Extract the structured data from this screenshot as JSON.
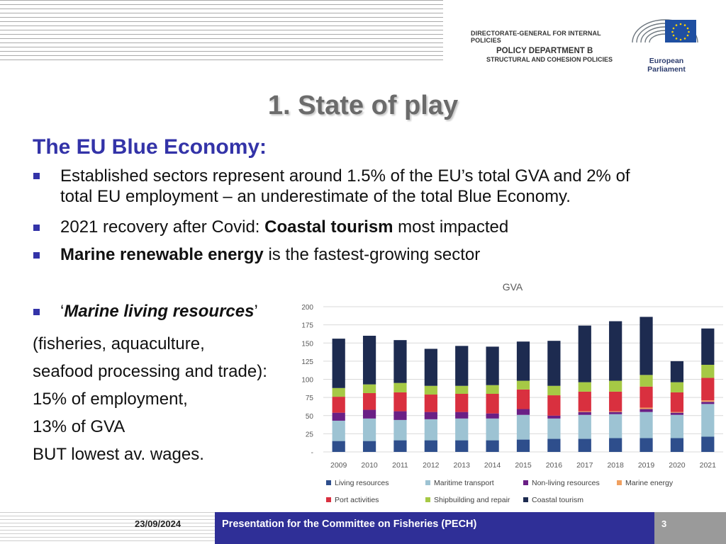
{
  "header": {
    "dg_line1": "DIRECTORATE-GENERAL FOR INTERNAL POLICIES",
    "dg_line2": "POLICY DEPARTMENT B",
    "dg_line3": "STRUCTURAL AND COHESION POLICIES",
    "org_name": "European Parliament"
  },
  "slide": {
    "title": "1. State of play",
    "subtitle": "The EU Blue Economy:",
    "bullet1_line1": "Established sectors represent around 1.5% of the EU’s total GVA and 2% of",
    "bullet1_line2": "total EU employment – an underestimate of the total Blue Economy.",
    "bullet2_pre": "2021 recovery after Covid: ",
    "bullet2_bold": "Coastal tourism",
    "bullet2_post": " most impacted",
    "bullet3_bold": "Marine renewable energy",
    "bullet3_post": " is the fastest-growing sector",
    "bullet4_open": "‘",
    "bullet4_bold": "Marine living resources",
    "bullet4_close": "’",
    "line_a": "(fisheries, aquaculture,",
    "line_b": "seafood processing and trade):",
    "line_c": "15% of employment,",
    "line_d": "13% of GVA",
    "line_e": "BUT lowest av. wages."
  },
  "footer": {
    "date": "23/09/2024",
    "presentation": "Presentation for the Committee on Fisheries (PECH)",
    "page_number": "3"
  },
  "colors": {
    "accent": "#3333a8",
    "footer_bar": "#2f2f97"
  },
  "chart_data": {
    "type": "bar",
    "stacked": true,
    "title": "GVA",
    "ylim": [
      0,
      200
    ],
    "yticks": [
      0,
      25,
      50,
      75,
      100,
      125,
      150,
      175,
      200
    ],
    "ytick_labels": [
      "-",
      "25",
      "50",
      "75",
      "100",
      "125",
      "150",
      "175",
      "200"
    ],
    "categories": [
      "2009",
      "2010",
      "2011",
      "2012",
      "2013",
      "2014",
      "2015",
      "2016",
      "2017",
      "2018",
      "2019",
      "2020",
      "2021"
    ],
    "series": [
      {
        "name": "Living resources",
        "color": "#2e4e8c",
        "values": [
          15,
          15,
          16,
          16,
          16,
          16,
          17,
          18,
          18,
          19,
          19,
          19,
          21
        ]
      },
      {
        "name": "Maritime transport",
        "color": "#9dc3d3",
        "values": [
          28,
          31,
          28,
          29,
          30,
          30,
          34,
          28,
          33,
          33,
          36,
          32,
          45
        ]
      },
      {
        "name": "Non-living resources",
        "color": "#6a1f85",
        "values": [
          11,
          12,
          12,
          10,
          9,
          7,
          8,
          4,
          4,
          3,
          4,
          3,
          3
        ]
      },
      {
        "name": "Marine energy",
        "color": "#f0a060",
        "values": [
          0,
          0,
          0,
          0,
          0,
          0,
          0,
          0,
          1,
          1,
          2,
          1,
          2
        ]
      },
      {
        "name": "Port activities",
        "color": "#d9303f",
        "values": [
          22,
          23,
          26,
          24,
          25,
          27,
          27,
          28,
          27,
          27,
          29,
          27,
          31
        ]
      },
      {
        "name": "Shipbuilding and repair",
        "color": "#a6c945",
        "values": [
          12,
          12,
          13,
          12,
          11,
          12,
          12,
          13,
          13,
          15,
          16,
          14,
          18
        ]
      },
      {
        "name": "Coastal tourism",
        "color": "#1d2b50",
        "values": [
          68,
          67,
          59,
          51,
          55,
          53,
          54,
          62,
          78,
          82,
          80,
          29,
          50
        ]
      }
    ],
    "legend_position": "bottom"
  }
}
